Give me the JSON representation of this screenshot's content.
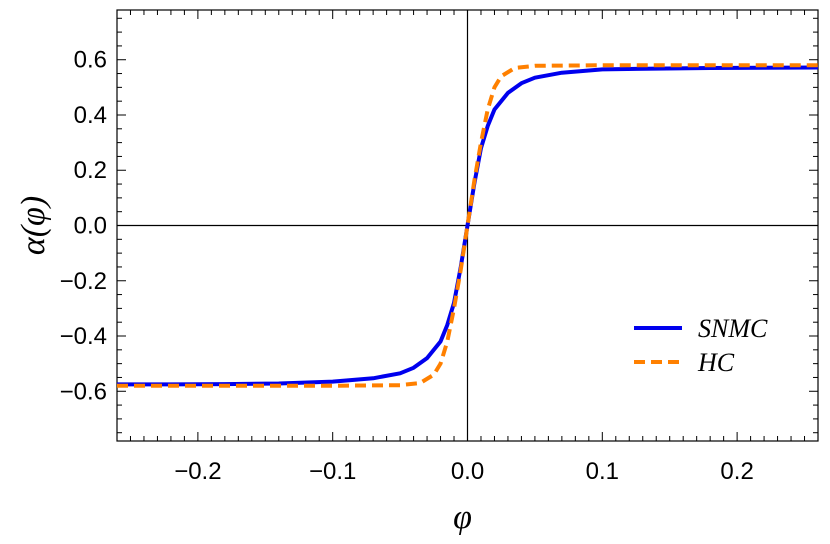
{
  "chart_data": {
    "type": "line",
    "xlabel": "φ",
    "ylabel": "α(φ)",
    "xlim": [
      -0.26,
      0.26
    ],
    "ylim": [
      -0.78,
      0.78
    ],
    "x_ticks": [
      -0.2,
      -0.1,
      0.0,
      0.1,
      0.2
    ],
    "x_tick_labels": [
      "−0.2",
      "−0.1",
      "0.0",
      "0.1",
      "0.2"
    ],
    "y_ticks": [
      -0.6,
      -0.4,
      -0.2,
      0.0,
      0.2,
      0.4,
      0.6
    ],
    "y_tick_labels": [
      "−0.6",
      "−0.4",
      "−0.2",
      "0.0",
      "0.2",
      "0.4",
      "0.6"
    ],
    "grid": false,
    "frame": true,
    "legend_position": "bottom-right",
    "series": [
      {
        "name": "SNMC",
        "color": "#0000ee",
        "style": "solid",
        "x": [
          -0.26,
          -0.22,
          -0.18,
          -0.14,
          -0.1,
          -0.07,
          -0.05,
          -0.04,
          -0.03,
          -0.02,
          -0.015,
          -0.01,
          -0.005,
          0.0,
          0.005,
          0.01,
          0.015,
          0.02,
          0.03,
          0.04,
          0.05,
          0.07,
          0.1,
          0.14,
          0.18,
          0.22,
          0.26
        ],
        "y": [
          -0.575,
          -0.575,
          -0.574,
          -0.572,
          -0.565,
          -0.553,
          -0.535,
          -0.515,
          -0.48,
          -0.42,
          -0.36,
          -0.28,
          -0.15,
          0.0,
          0.15,
          0.28,
          0.36,
          0.42,
          0.48,
          0.515,
          0.535,
          0.553,
          0.565,
          0.568,
          0.57,
          0.571,
          0.572
        ]
      },
      {
        "name": "HC",
        "color": "#ff8000",
        "style": "dashed",
        "x": [
          -0.26,
          -0.2,
          -0.1,
          -0.05,
          -0.035,
          -0.025,
          -0.02,
          -0.015,
          -0.01,
          -0.005,
          0.0,
          0.005,
          0.01,
          0.015,
          0.02,
          0.025,
          0.035,
          0.05,
          0.1,
          0.2,
          0.26
        ],
        "y": [
          -0.58,
          -0.58,
          -0.58,
          -0.578,
          -0.57,
          -0.54,
          -0.5,
          -0.42,
          -0.3,
          -0.16,
          0.0,
          0.16,
          0.3,
          0.42,
          0.5,
          0.54,
          0.57,
          0.578,
          0.58,
          0.58,
          0.58
        ]
      }
    ]
  }
}
